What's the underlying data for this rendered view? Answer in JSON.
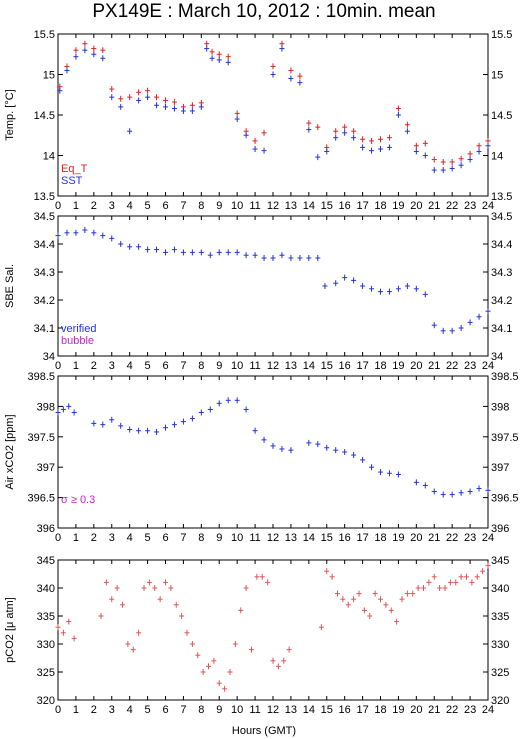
{
  "title": "PX149E : March 10, 2012 : 10min. mean",
  "xlabel": "Hours (GMT)",
  "colors": {
    "red": "#dd2222",
    "blue": "#2233dd",
    "magenta": "#cc22cc",
    "salmon": "#e05555"
  },
  "chart_data": [
    {
      "type": "scatter",
      "ylabel": "Temp. [°C]",
      "xlim": [
        0,
        24
      ],
      "ylim": [
        13.5,
        15.5
      ],
      "yticks": [
        "13.5",
        "14",
        "14.5",
        "15",
        "15.5"
      ],
      "xticks": [
        "0",
        "1",
        "2",
        "3",
        "4",
        "5",
        "6",
        "7",
        "8",
        "9",
        "10",
        "11",
        "12",
        "13",
        "14",
        "15",
        "16",
        "17",
        "18",
        "19",
        "20",
        "21",
        "22",
        "23",
        "24"
      ],
      "legend": [
        {
          "label": "Eq_T",
          "color": "#dd2222"
        },
        {
          "label": "SST",
          "color": "#2233dd"
        }
      ],
      "series": [
        {
          "name": "Eq_T",
          "color": "#dd2222",
          "x": [
            0.1,
            0.5,
            1.0,
            1.5,
            2.0,
            2.5,
            3.0,
            3.5,
            4.0,
            4.5,
            5.0,
            5.5,
            6.0,
            6.5,
            7.0,
            7.5,
            8.0,
            8.3,
            8.6,
            9.0,
            9.5,
            10.0,
            10.5,
            11.0,
            11.5,
            12.0,
            12.5,
            13.0,
            13.5,
            14.0,
            14.5,
            15.0,
            15.5,
            16.0,
            16.5,
            17.0,
            17.5,
            18.0,
            18.5,
            19.0,
            19.5,
            20.0,
            20.5,
            21.0,
            21.5,
            22.0,
            22.5,
            23.0,
            23.5,
            24.0
          ],
          "y": [
            14.85,
            15.1,
            15.3,
            15.38,
            15.32,
            15.3,
            14.82,
            14.7,
            14.72,
            14.78,
            14.8,
            14.72,
            14.68,
            14.66,
            14.6,
            14.62,
            14.65,
            15.38,
            15.28,
            15.25,
            15.22,
            14.52,
            14.3,
            14.18,
            14.28,
            15.1,
            15.38,
            15.05,
            14.98,
            14.4,
            14.35,
            14.1,
            14.3,
            14.35,
            14.3,
            14.2,
            14.18,
            14.2,
            14.22,
            14.58,
            14.38,
            14.12,
            14.15,
            13.95,
            13.92,
            13.92,
            13.96,
            14.02,
            14.12,
            14.18
          ]
        },
        {
          "name": "SST",
          "color": "#2233dd",
          "x": [
            0.1,
            0.5,
            1.0,
            1.5,
            2.0,
            2.5,
            3.0,
            3.5,
            4.0,
            4.5,
            5.0,
            5.5,
            6.0,
            6.5,
            7.0,
            7.5,
            8.0,
            8.3,
            8.6,
            9.0,
            9.5,
            10.0,
            10.5,
            11.0,
            11.5,
            12.0,
            12.5,
            13.0,
            13.5,
            14.0,
            14.5,
            15.0,
            15.5,
            16.0,
            16.5,
            17.0,
            17.5,
            18.0,
            18.5,
            19.0,
            19.5,
            20.0,
            20.5,
            21.0,
            21.5,
            22.0,
            22.5,
            23.0,
            23.5,
            24.0
          ],
          "y": [
            14.8,
            15.05,
            15.22,
            15.3,
            15.25,
            15.2,
            14.72,
            14.6,
            14.3,
            14.68,
            14.72,
            14.62,
            14.6,
            14.58,
            14.55,
            14.55,
            14.6,
            15.32,
            15.2,
            15.18,
            15.15,
            14.45,
            14.25,
            14.08,
            14.06,
            15.0,
            15.32,
            14.95,
            14.9,
            14.32,
            13.98,
            14.05,
            14.22,
            14.28,
            14.22,
            14.1,
            14.06,
            14.08,
            14.1,
            14.5,
            14.3,
            14.05,
            14.0,
            13.82,
            13.82,
            13.84,
            13.88,
            13.95,
            14.05,
            14.12
          ]
        }
      ]
    },
    {
      "type": "scatter",
      "ylabel": "SBE Sal.",
      "xlim": [
        0,
        24
      ],
      "ylim": [
        34.0,
        34.5
      ],
      "yticks": [
        "34",
        "34.1",
        "34.2",
        "34.3",
        "34.4",
        "34.5"
      ],
      "xticks": [
        "0",
        "1",
        "2",
        "3",
        "4",
        "5",
        "6",
        "7",
        "8",
        "9",
        "10",
        "11",
        "12",
        "13",
        "14",
        "15",
        "16",
        "17",
        "18",
        "19",
        "20",
        "21",
        "22",
        "23",
        "24"
      ],
      "legend": [
        {
          "label": "verified",
          "color": "#2233dd"
        },
        {
          "label": "bubble",
          "color": "#cc22cc"
        }
      ],
      "series": [
        {
          "name": "verified",
          "color": "#2233dd",
          "x": [
            0.0,
            0.5,
            1.0,
            1.5,
            2.0,
            2.5,
            3.0,
            3.5,
            4.0,
            4.5,
            5.0,
            5.5,
            6.0,
            6.5,
            7.0,
            7.5,
            8.0,
            8.5,
            9.0,
            9.5,
            10.0,
            10.5,
            11.0,
            11.5,
            12.0,
            12.5,
            13.0,
            13.5,
            14.0,
            14.5,
            14.9,
            15.5,
            16.0,
            16.5,
            17.0,
            17.5,
            18.0,
            18.5,
            19.0,
            19.5,
            20.0,
            20.5,
            21.0,
            21.5,
            22.0,
            22.5,
            23.0,
            23.5,
            24.0
          ],
          "y": [
            34.43,
            34.44,
            34.44,
            34.45,
            34.44,
            34.43,
            34.42,
            34.4,
            34.39,
            34.39,
            34.38,
            34.38,
            34.37,
            34.38,
            34.37,
            34.37,
            34.37,
            34.36,
            34.37,
            34.37,
            34.37,
            34.36,
            34.36,
            34.35,
            34.35,
            34.36,
            34.35,
            34.35,
            34.35,
            34.35,
            34.25,
            34.26,
            34.28,
            34.27,
            34.25,
            34.24,
            34.23,
            34.23,
            34.24,
            34.25,
            34.24,
            34.22,
            34.11,
            34.09,
            34.09,
            34.1,
            34.12,
            34.14,
            34.16
          ]
        }
      ]
    },
    {
      "type": "scatter",
      "ylabel": "Air xCO2 [ppm]",
      "xlim": [
        0,
        24
      ],
      "ylim": [
        396,
        398.5
      ],
      "yticks": [
        "396",
        "396.5",
        "397",
        "397.5",
        "398",
        "398.5"
      ],
      "xticks": [
        "0",
        "1",
        "2",
        "3",
        "4",
        "5",
        "6",
        "7",
        "8",
        "9",
        "10",
        "11",
        "12",
        "13",
        "14",
        "15",
        "16",
        "17",
        "18",
        "19",
        "20",
        "21",
        "22",
        "23",
        "24"
      ],
      "annotation": "σ ≥ 0.3",
      "series": [
        {
          "name": "Air xCO2",
          "color": "#2233dd",
          "x": [
            0.0,
            0.3,
            0.6,
            0.9,
            2.0,
            2.5,
            3.0,
            3.5,
            4.0,
            4.5,
            5.0,
            5.5,
            6.0,
            6.5,
            7.0,
            7.5,
            8.0,
            8.5,
            9.0,
            9.5,
            10.0,
            10.5,
            11.0,
            11.5,
            12.0,
            12.5,
            13.0,
            14.0,
            14.5,
            15.0,
            15.5,
            16.0,
            16.5,
            17.0,
            17.5,
            18.0,
            18.5,
            19.0,
            20.0,
            20.5,
            21.0,
            21.5,
            22.0,
            22.5,
            23.0,
            23.5,
            24.0
          ],
          "y": [
            397.9,
            397.95,
            398.0,
            397.9,
            397.72,
            397.7,
            397.78,
            397.68,
            397.62,
            397.6,
            397.6,
            397.58,
            397.65,
            397.7,
            397.75,
            397.8,
            397.9,
            397.95,
            398.05,
            398.1,
            398.1,
            397.95,
            397.6,
            397.45,
            397.35,
            397.3,
            397.28,
            397.4,
            397.38,
            397.32,
            397.28,
            397.25,
            397.2,
            397.12,
            397.0,
            396.92,
            396.9,
            396.88,
            396.75,
            396.7,
            396.6,
            396.55,
            396.55,
            396.58,
            396.6,
            396.65,
            396.62
          ]
        }
      ]
    },
    {
      "type": "scatter",
      "ylabel": "pCO2 [μ atm]",
      "xlim": [
        0,
        24
      ],
      "ylim": [
        320,
        345
      ],
      "yticks": [
        "320",
        "325",
        "330",
        "335",
        "340",
        "345"
      ],
      "xticks": [
        "0",
        "1",
        "2",
        "3",
        "4",
        "5",
        "6",
        "7",
        "8",
        "9",
        "10",
        "11",
        "12",
        "13",
        "14",
        "15",
        "16",
        "17",
        "18",
        "19",
        "20",
        "21",
        "22",
        "23",
        "24"
      ],
      "series": [
        {
          "name": "pCO2",
          "color": "#e05555",
          "x": [
            0.0,
            0.3,
            0.6,
            0.9,
            2.4,
            2.7,
            3.0,
            3.3,
            3.6,
            3.9,
            4.2,
            4.5,
            4.8,
            5.1,
            5.4,
            5.7,
            6.0,
            6.3,
            6.6,
            6.9,
            7.2,
            7.5,
            7.8,
            8.1,
            8.4,
            8.7,
            9.0,
            9.3,
            9.6,
            9.9,
            10.2,
            10.5,
            10.8,
            11.1,
            11.4,
            11.7,
            12.0,
            12.3,
            12.6,
            12.9,
            14.7,
            15.0,
            15.3,
            15.6,
            15.9,
            16.2,
            16.5,
            16.8,
            17.1,
            17.4,
            17.7,
            18.0,
            18.3,
            18.6,
            18.9,
            19.2,
            19.5,
            19.8,
            20.1,
            20.4,
            20.7,
            21.0,
            21.3,
            21.6,
            21.9,
            22.2,
            22.5,
            22.8,
            23.1,
            23.4,
            23.7,
            24.0
          ],
          "y": [
            333,
            332,
            334,
            331,
            335,
            341,
            338,
            340,
            337,
            330,
            329,
            332,
            340,
            341,
            340,
            338,
            341,
            340,
            337,
            335,
            332,
            330,
            328,
            325,
            326,
            327,
            323,
            322,
            325,
            330,
            336,
            340,
            329,
            342,
            342,
            341,
            327,
            326,
            327,
            329,
            333,
            343,
            342,
            339,
            338,
            337,
            338,
            339,
            336,
            335,
            339,
            338,
            337,
            336,
            334,
            338,
            339,
            339,
            340,
            340,
            341,
            342,
            340,
            340,
            341,
            341,
            342,
            342,
            341,
            342,
            343,
            344
          ]
        }
      ]
    }
  ]
}
